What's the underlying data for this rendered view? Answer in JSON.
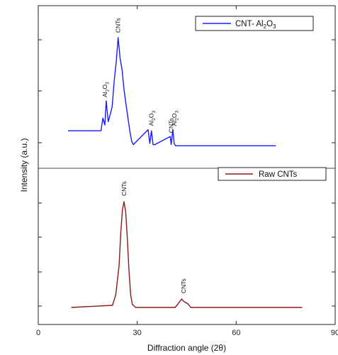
{
  "chart_data": [
    {
      "type": "line",
      "panel": "top",
      "color": "#1a1aff",
      "legend": "CNT- Al2O3",
      "legend_parts": [
        "CNT- Al",
        "2",
        "O",
        "3"
      ],
      "legend_placement": "top-right",
      "x": [
        9,
        19,
        19.6,
        20.2,
        20.6,
        21.2,
        21.8,
        22.4,
        23.0,
        23.6,
        24.2,
        24.8,
        25.4,
        26.0,
        26.6,
        27.2,
        27.8,
        28.3,
        28.8,
        33.3,
        33.8,
        34.3,
        34.8,
        35.3,
        40.0,
        40.3,
        40.8,
        41.2,
        41.6,
        42.0,
        72
      ],
      "y": [
        0.19,
        0.19,
        0.3,
        0.24,
        0.45,
        0.27,
        0.33,
        0.4,
        0.62,
        0.78,
        1.0,
        0.82,
        0.72,
        0.55,
        0.42,
        0.3,
        0.18,
        0.1,
        0.07,
        0.2,
        0.08,
        0.19,
        0.07,
        0.07,
        0.14,
        0.07,
        0.2,
        0.08,
        0.06,
        0.06,
        0.06
      ],
      "annotations": [
        {
          "x": 20.2,
          "y": 0.47,
          "parts": [
            "Al",
            "2",
            "O",
            "3"
          ]
        },
        {
          "x": 24.2,
          "y": 1.03,
          "parts": [
            "CNTs"
          ]
        },
        {
          "x": 34.3,
          "y": 0.22,
          "parts": [
            "Al",
            "2",
            "O",
            "3"
          ]
        },
        {
          "x": 40.3,
          "y": 0.16,
          "parts": [
            "CNTs"
          ]
        },
        {
          "x": 41.2,
          "y": 0.22,
          "parts": [
            "Al",
            "2",
            "O",
            "3"
          ]
        }
      ]
    },
    {
      "type": "line",
      "panel": "bottom",
      "color": "#8b1a1a",
      "legend": "Raw CNTs",
      "legend_placement": "top-right",
      "x": [
        10,
        22.5,
        23.5,
        24.5,
        25.0,
        25.5,
        26.0,
        26.5,
        27.0,
        27.5,
        28.0,
        28.5,
        29.5,
        41.5,
        42.3,
        43.0,
        43.5,
        44.0,
        44.5,
        45.0,
        45.5,
        46.2,
        80
      ],
      "y": [
        0.0,
        0.02,
        0.12,
        0.4,
        0.7,
        0.92,
        1.0,
        0.9,
        0.65,
        0.35,
        0.12,
        0.03,
        0.0,
        0.0,
        0.03,
        0.06,
        0.08,
        0.06,
        0.05,
        0.04,
        0.03,
        0.0,
        0.0
      ],
      "annotations": [
        {
          "x": 26.0,
          "y": 1.04,
          "parts": [
            "CNTs"
          ]
        },
        {
          "x": 44.0,
          "y": 0.12,
          "parts": [
            "CNTs"
          ]
        }
      ]
    }
  ],
  "axes": {
    "xlabel": "Diffraction angle (2θ)",
    "ylabel": "Intensity (a.u.)",
    "xlim": [
      0,
      90
    ],
    "xticks": [
      0,
      30,
      60,
      90
    ],
    "xtick_labels": [
      "0",
      "30",
      "60",
      "90"
    ]
  }
}
